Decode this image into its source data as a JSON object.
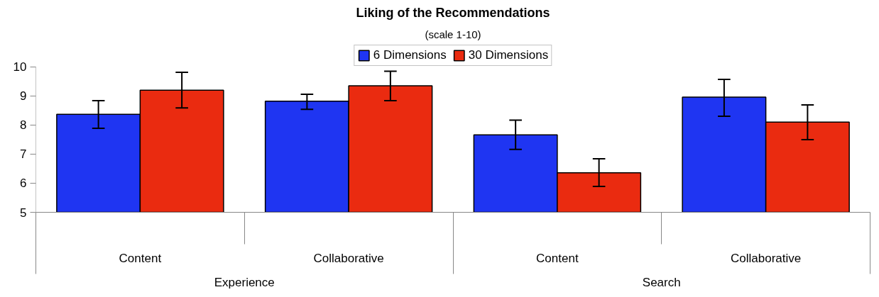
{
  "chart_data": {
    "type": "bar",
    "title": "Liking of the Recommendations",
    "subtitle": "(scale 1-10)",
    "categories": [
      "Content",
      "Collaborative",
      "Content",
      "Collaborative"
    ],
    "annotations": [
      "Experience",
      "Search"
    ],
    "series": [
      {
        "name": "6 Dimensions",
        "color": "#1f35f2",
        "values": [
          8.37,
          8.82,
          7.66,
          8.96
        ],
        "errors": [
          [
            7.89,
            8.84
          ],
          [
            8.54,
            9.06
          ],
          [
            7.16,
            8.17
          ],
          [
            8.3,
            9.57
          ]
        ]
      },
      {
        "name": "30 Dimensions",
        "color": "#ea2b10",
        "values": [
          9.2,
          9.35,
          6.36,
          8.1
        ],
        "errors": [
          [
            8.59,
            9.81
          ],
          [
            8.84,
            9.85
          ],
          [
            5.89,
            6.84
          ],
          [
            7.5,
            8.69
          ]
        ]
      }
    ],
    "ylim": [
      5,
      10
    ],
    "yticks": [
      5,
      6,
      7,
      8,
      9,
      10
    ],
    "grid": false,
    "legend": "top"
  }
}
